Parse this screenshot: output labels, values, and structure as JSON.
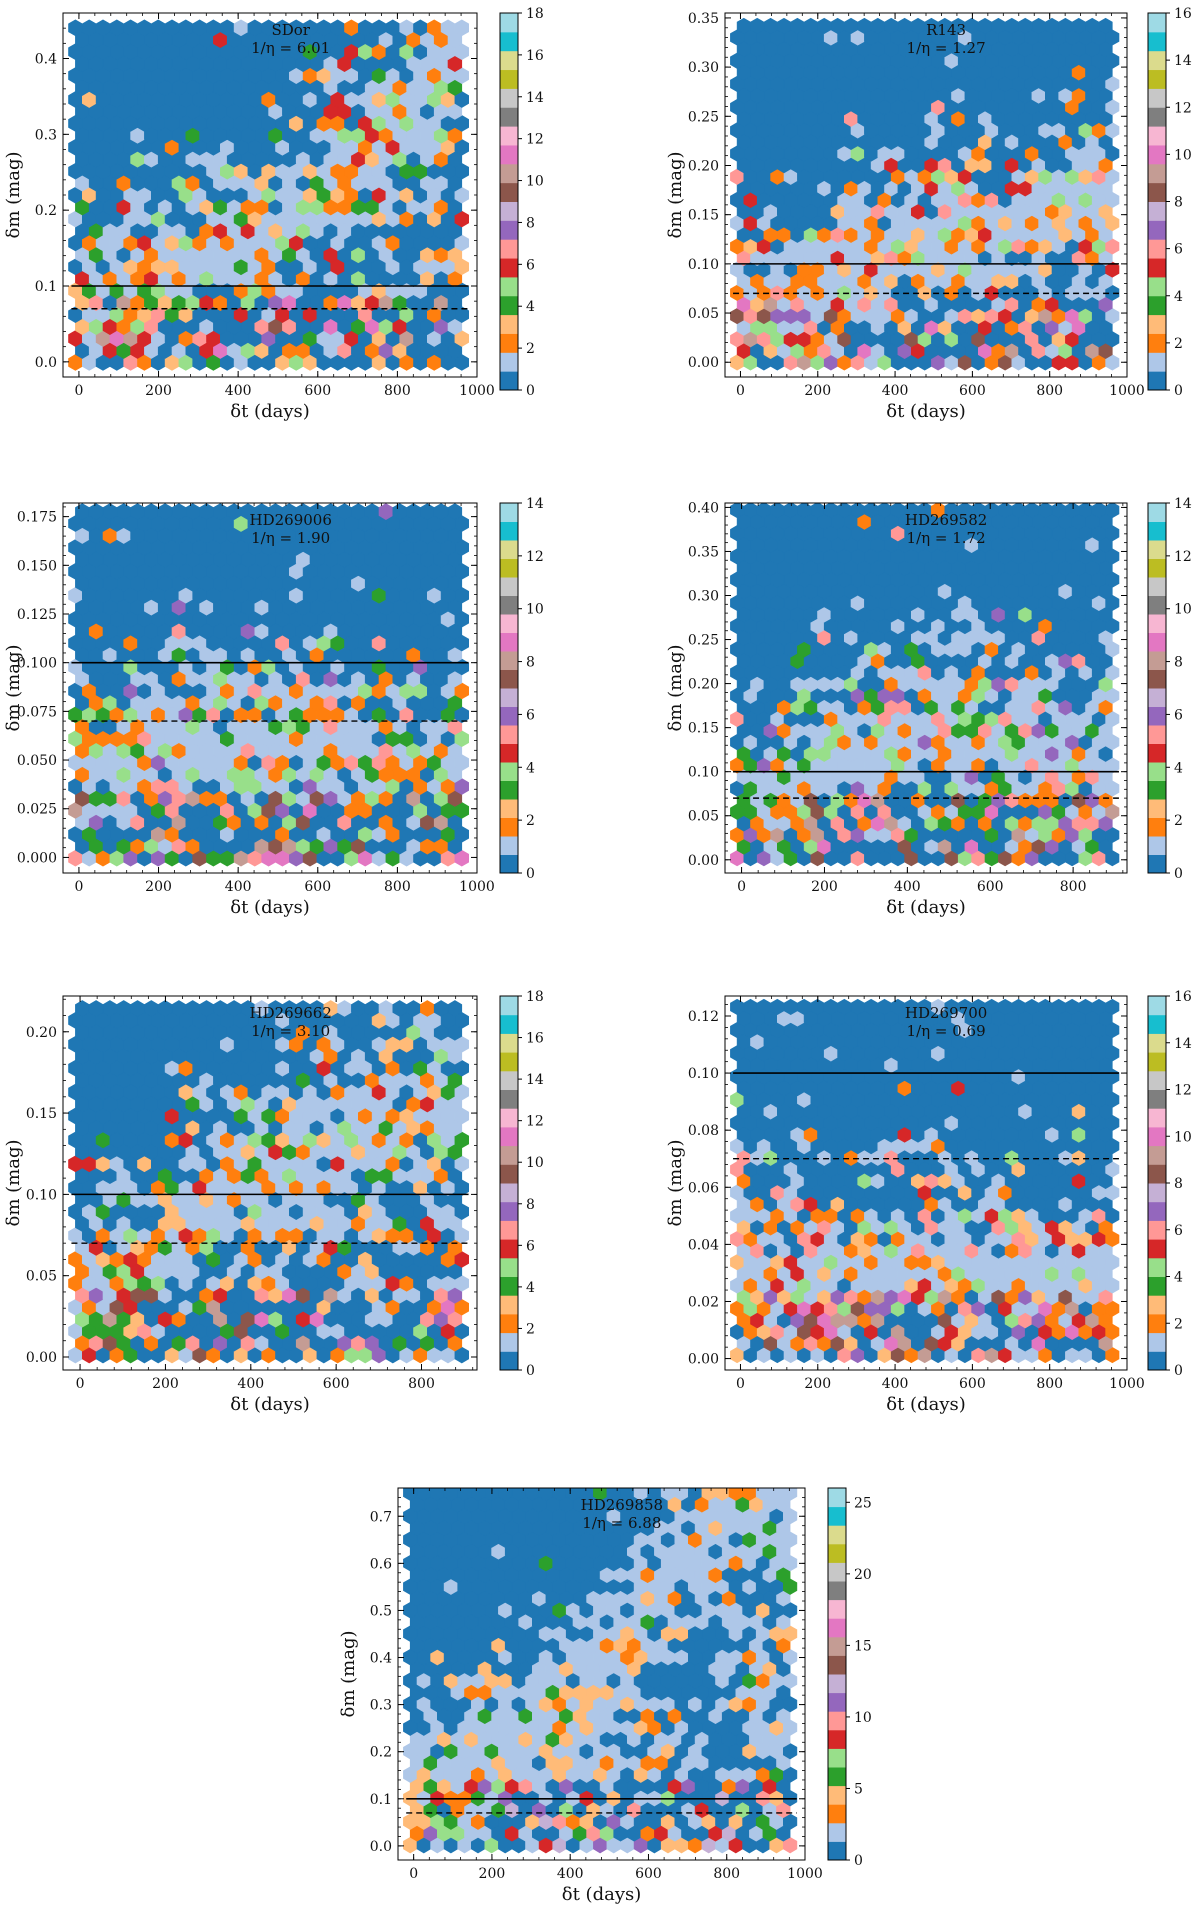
{
  "colors": {
    "tab20": [
      "#1f77b4",
      "#aec7e8",
      "#ff7f0e",
      "#ffbb78",
      "#2ca02c",
      "#98df8a",
      "#d62728",
      "#ff9896",
      "#9467bd",
      "#c5b0d5",
      "#8c564b",
      "#c49c94",
      "#e377c2",
      "#f7b6d2",
      "#7f7f7f",
      "#c7c7c7",
      "#bcbd22",
      "#dbdb8d",
      "#17becf",
      "#9edae5"
    ]
  },
  "chart_data": [
    {
      "type": "heatmap",
      "name": "SDor",
      "annotation": [
        "SDor",
        "1/η = 6.01"
      ],
      "xlabel": "δt (days)",
      "ylabel": "δm (mag)",
      "xlim": [
        -40,
        1000
      ],
      "ylim": [
        -0.02,
        0.46
      ],
      "xticks": [
        0,
        200,
        400,
        600,
        800,
        1000
      ],
      "yticks": [
        0.0,
        0.1,
        0.2,
        0.3,
        0.4
      ],
      "ytick_labels": [
        "0.0",
        "0.1",
        "0.2",
        "0.3",
        "0.4"
      ],
      "hline_solid": 0.1,
      "hline_dashed": 0.07,
      "cbar_max": 18,
      "cbar_ticks": [
        0,
        2,
        4,
        6,
        8,
        10,
        12,
        14,
        16,
        18
      ],
      "trend": [
        [
          0,
          0.07
        ],
        [
          600,
          0.2
        ],
        [
          950,
          0.43
        ]
      ],
      "seed": 11
    },
    {
      "type": "heatmap",
      "name": "R143",
      "annotation": [
        "R143",
        "1/η = 1.27"
      ],
      "xlabel": "δt (days)",
      "ylabel": "δm (mag)",
      "xlim": [
        -40,
        1000
      ],
      "ylim": [
        -0.015,
        0.355
      ],
      "xticks": [
        0,
        200,
        400,
        600,
        800,
        1000
      ],
      "yticks": [
        0.0,
        0.05,
        0.1,
        0.15,
        0.2,
        0.25,
        0.3,
        0.35
      ],
      "ytick_labels": [
        "0.00",
        "0.05",
        "0.10",
        "0.15",
        "0.20",
        "0.25",
        "0.30",
        "0.35"
      ],
      "hline_solid": 0.1,
      "hline_dashed": 0.07,
      "cbar_max": 16,
      "cbar_ticks": [
        0,
        2,
        4,
        6,
        8,
        10,
        12,
        14,
        16
      ],
      "trend": [
        [
          0,
          0.05
        ],
        [
          500,
          0.12
        ],
        [
          950,
          0.17
        ]
      ],
      "seed": 23
    },
    {
      "type": "heatmap",
      "name": "HD269006",
      "annotation": [
        "HD269006",
        "1/η = 1.90"
      ],
      "xlabel": "δt (days)",
      "ylabel": "δm (mag)",
      "xlim": [
        -40,
        1000
      ],
      "ylim": [
        -0.008,
        0.182
      ],
      "xticks": [
        0,
        200,
        400,
        600,
        800,
        1000
      ],
      "yticks": [
        0.0,
        0.025,
        0.05,
        0.075,
        0.1,
        0.125,
        0.15,
        0.175
      ],
      "ytick_labels": [
        "0.000",
        "0.025",
        "0.050",
        "0.075",
        "0.100",
        "0.125",
        "0.150",
        "0.175"
      ],
      "hline_solid": 0.1,
      "hline_dashed": 0.07,
      "cbar_max": 14,
      "cbar_ticks": [
        0,
        2,
        4,
        6,
        8,
        10,
        12,
        14
      ],
      "trend": [
        [
          0,
          0.05
        ],
        [
          500,
          0.06
        ],
        [
          950,
          0.05
        ]
      ],
      "seed": 37
    },
    {
      "type": "heatmap",
      "name": "HD269582",
      "annotation": [
        "HD269582",
        "1/η = 1.72"
      ],
      "xlabel": "δt (days)",
      "ylabel": "δm (mag)",
      "xlim": [
        -40,
        930
      ],
      "ylim": [
        -0.015,
        0.405
      ],
      "xticks": [
        0,
        200,
        400,
        600,
        800
      ],
      "yticks": [
        0.0,
        0.05,
        0.1,
        0.15,
        0.2,
        0.25,
        0.3,
        0.35,
        0.4
      ],
      "ytick_labels": [
        "0.00",
        "0.05",
        "0.10",
        "0.15",
        "0.20",
        "0.25",
        "0.30",
        "0.35",
        "0.40"
      ],
      "hline_solid": 0.1,
      "hline_dashed": 0.07,
      "cbar_max": 14,
      "cbar_ticks": [
        0,
        2,
        4,
        6,
        8,
        10,
        12,
        14
      ],
      "trend": [
        [
          0,
          0.05
        ],
        [
          400,
          0.15
        ],
        [
          900,
          0.1
        ]
      ],
      "seed": 41
    },
    {
      "type": "heatmap",
      "name": "HD269662",
      "annotation": [
        "HD269662",
        "1/η = 3.10"
      ],
      "xlabel": "δt (days)",
      "ylabel": "δm (mag)",
      "xlim": [
        -40,
        930
      ],
      "ylim": [
        -0.008,
        0.222
      ],
      "xticks": [
        0,
        200,
        400,
        600,
        800
      ],
      "yticks": [
        0.0,
        0.05,
        0.1,
        0.15,
        0.2
      ],
      "ytick_labels": [
        "0.00",
        "0.05",
        "0.10",
        "0.15",
        "0.20"
      ],
      "hline_solid": 0.1,
      "hline_dashed": 0.07,
      "cbar_max": 18,
      "cbar_ticks": [
        0,
        2,
        4,
        6,
        8,
        10,
        12,
        14,
        16,
        18
      ],
      "trend": [
        [
          0,
          0.03
        ],
        [
          400,
          0.11
        ],
        [
          800,
          0.15
        ]
      ],
      "seed": 53
    },
    {
      "type": "heatmap",
      "name": "HD269700",
      "annotation": [
        "HD269700",
        "1/η = 0.69"
      ],
      "xlabel": "δt (days)",
      "ylabel": "δm (mag)",
      "xlim": [
        -40,
        1000
      ],
      "ylim": [
        -0.004,
        0.127
      ],
      "xticks": [
        0,
        200,
        400,
        600,
        800,
        1000
      ],
      "yticks": [
        0.0,
        0.02,
        0.04,
        0.06,
        0.08,
        0.1,
        0.12
      ],
      "ytick_labels": [
        "0.00",
        "0.02",
        "0.04",
        "0.06",
        "0.08",
        "0.10",
        "0.12"
      ],
      "hline_solid": 0.1,
      "hline_dashed": 0.07,
      "cbar_max": 16,
      "cbar_ticks": [
        0,
        2,
        4,
        6,
        8,
        10,
        12,
        14,
        16
      ],
      "trend": [
        [
          0,
          0.025
        ],
        [
          500,
          0.03
        ],
        [
          950,
          0.025
        ]
      ],
      "seed": 67
    },
    {
      "type": "heatmap",
      "name": "HD269858",
      "annotation": [
        "HD269858",
        "1/η = 6.88"
      ],
      "xlabel": "δt (days)",
      "ylabel": "δm (mag)",
      "xlim": [
        -40,
        1000
      ],
      "ylim": [
        -0.03,
        0.76
      ],
      "xticks": [
        0,
        200,
        400,
        600,
        800,
        1000
      ],
      "yticks": [
        0.0,
        0.1,
        0.2,
        0.3,
        0.4,
        0.5,
        0.6,
        0.7
      ],
      "ytick_labels": [
        "0.0",
        "0.1",
        "0.2",
        "0.3",
        "0.4",
        "0.5",
        "0.6",
        "0.7"
      ],
      "hline_solid": 0.1,
      "hline_dashed": 0.07,
      "cbar_max": 26,
      "cbar_ticks": [
        0,
        5,
        10,
        15,
        20,
        25
      ],
      "trend": [
        [
          0,
          0.1
        ],
        [
          400,
          0.3
        ],
        [
          800,
          0.7
        ]
      ],
      "seed": 79
    }
  ]
}
